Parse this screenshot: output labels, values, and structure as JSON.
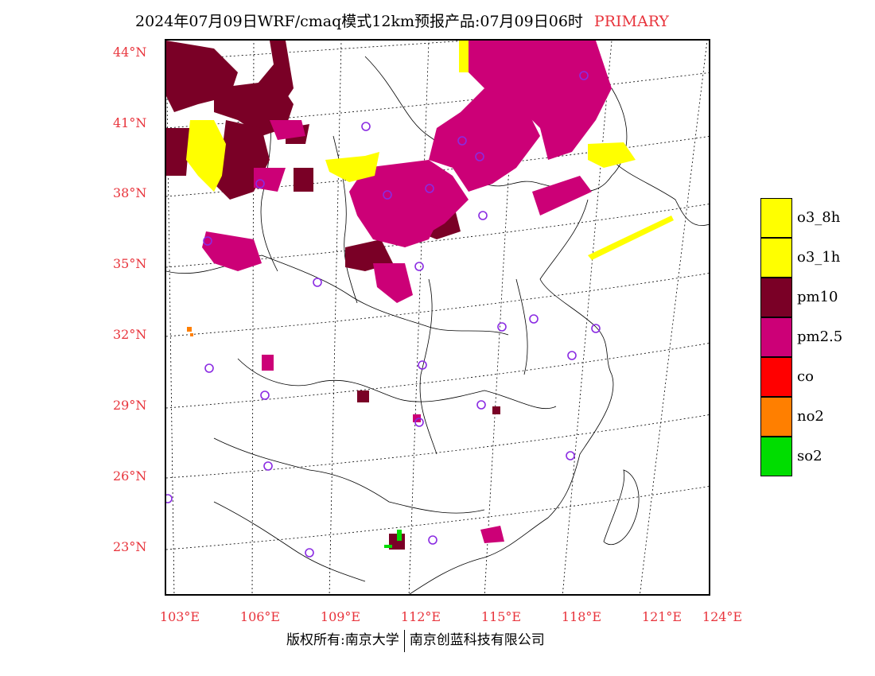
{
  "title": {
    "main": "2024年07月09日WRF/cmaq模式12km预报产品:07月09日06时",
    "tag": "PRIMARY"
  },
  "axes": {
    "latitudes": [
      "44°N",
      "41°N",
      "38°N",
      "35°N",
      "32°N",
      "29°N",
      "26°N",
      "23°N"
    ],
    "longitudes": [
      "103°E",
      "106°E",
      "109°E",
      "112°E",
      "115°E",
      "118°E",
      "121°E",
      "124°E"
    ]
  },
  "legend": [
    {
      "label": "o3_8h",
      "color": "#ffff00"
    },
    {
      "label": "o3_1h",
      "color": "#ffff00"
    },
    {
      "label": "pm10",
      "color": "#7a0026"
    },
    {
      "label": "pm2.5",
      "color": "#cc0077"
    },
    {
      "label": "co",
      "color": "#ff0000"
    },
    {
      "label": "no2",
      "color": "#ff7f00"
    },
    {
      "label": "so2",
      "color": "#00dd00"
    }
  ],
  "colors": {
    "pm10": "#7a0026",
    "pm25": "#cc0077",
    "o3": "#ffff00",
    "no2": "#ff7f00",
    "so2": "#00dd00",
    "station": "#8a2be2",
    "axis_label": "#e8343c"
  },
  "footer": {
    "left": "版权所有:南京大学",
    "right": "南京创蓝科技有限公司"
  }
}
